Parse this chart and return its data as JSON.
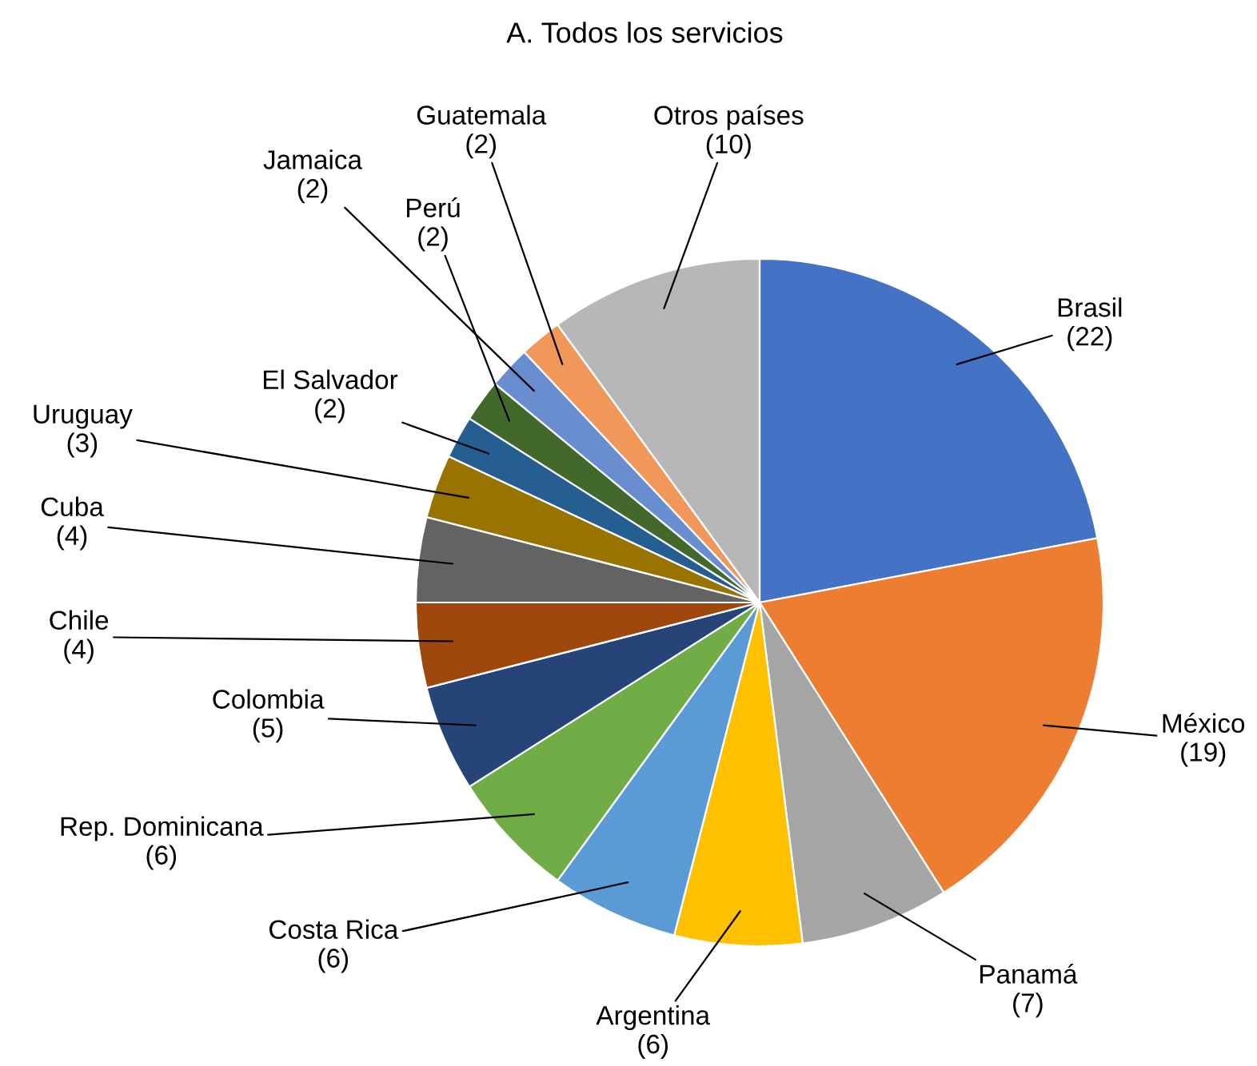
{
  "chart_data": {
    "type": "pie",
    "title": "A. Todos los servicios",
    "categories": [
      "Brasil",
      "México",
      "Panamá",
      "Argentina",
      "Costa Rica",
      "Rep. Dominicana",
      "Colombia",
      "Chile",
      "Cuba",
      "Uruguay",
      "El Salvador",
      "Perú",
      "Jamaica",
      "Guatemala",
      "Otros países"
    ],
    "values": [
      22,
      19,
      7,
      6,
      6,
      6,
      5,
      4,
      4,
      3,
      2,
      2,
      2,
      2,
      10
    ],
    "value_labels": [
      "(22)",
      "(19)",
      "(7)",
      "(6)",
      "(6)",
      "(6)",
      "(5)",
      "(4)",
      "(4)",
      "(3)",
      "(2)",
      "(2)",
      "(2)",
      "(2)",
      "(10)"
    ],
    "colors": [
      "#4472c4",
      "#ed7d31",
      "#a5a5a5",
      "#ffc000",
      "#5b9bd5",
      "#70ad47",
      "#264478",
      "#9e480e",
      "#636363",
      "#997300",
      "#255e91",
      "#43682b",
      "#698ed0",
      "#f1975a",
      "#b7b7b7"
    ]
  }
}
